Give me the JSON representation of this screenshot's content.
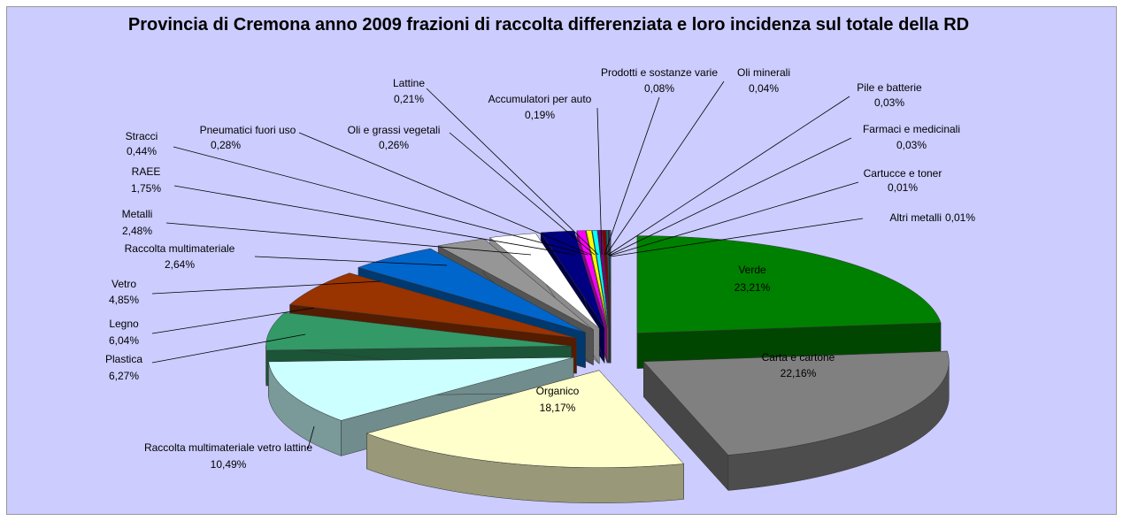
{
  "chart_data": {
    "type": "pie3d",
    "title": "Provincia di Cremona anno 2009 frazioni di raccolta differenziata e loro incidenza sul totale della RD",
    "categories": [
      "Verde",
      "Carta e cartone",
      "Organico",
      "Raccolta multimateriale vetro lattine",
      "Plastica",
      "Legno",
      "Vetro",
      "Raccolta multimateriale",
      "Metalli",
      "RAEE",
      "Stracci",
      "Pneumatici fuori uso",
      "Oli e grassi vegetali",
      "Lattine",
      "Accumulatori per auto",
      "Prodotti e sostanze varie",
      "Oli minerali",
      "Pile e batterie",
      "Farmaci e medicinali",
      "Cartucce e toner",
      "Altri metalli"
    ],
    "values": [
      23.21,
      22.16,
      18.17,
      10.49,
      6.27,
      6.04,
      4.85,
      2.64,
      2.48,
      1.75,
      0.44,
      0.28,
      0.26,
      0.21,
      0.19,
      0.08,
      0.04,
      0.03,
      0.03,
      0.01,
      0.01
    ],
    "value_labels": [
      "23,21%",
      "22,16%",
      "18,17%",
      "10,49%",
      "6,27%",
      "6,04%",
      "4,85%",
      "2,64%",
      "2,48%",
      "1,75%",
      "0,44%",
      "0,28%",
      "0,26%",
      "0,21%",
      "0,19%",
      "0,08%",
      "0,04%",
      "0,03%",
      "0,03%",
      "0,01%",
      "0,01%"
    ],
    "colors": [
      "#008000",
      "#808080",
      "#ffffcc",
      "#ccffff",
      "#339966",
      "#993300",
      "#0066cc",
      "#969696",
      "#ffffff",
      "#000080",
      "#ff00ff",
      "#ffff00",
      "#00ffff",
      "#800080",
      "#800000",
      "#008080",
      "#0000ff",
      "#ccffff",
      "#ccffcc",
      "#ffff99",
      "#99ccff"
    ]
  }
}
